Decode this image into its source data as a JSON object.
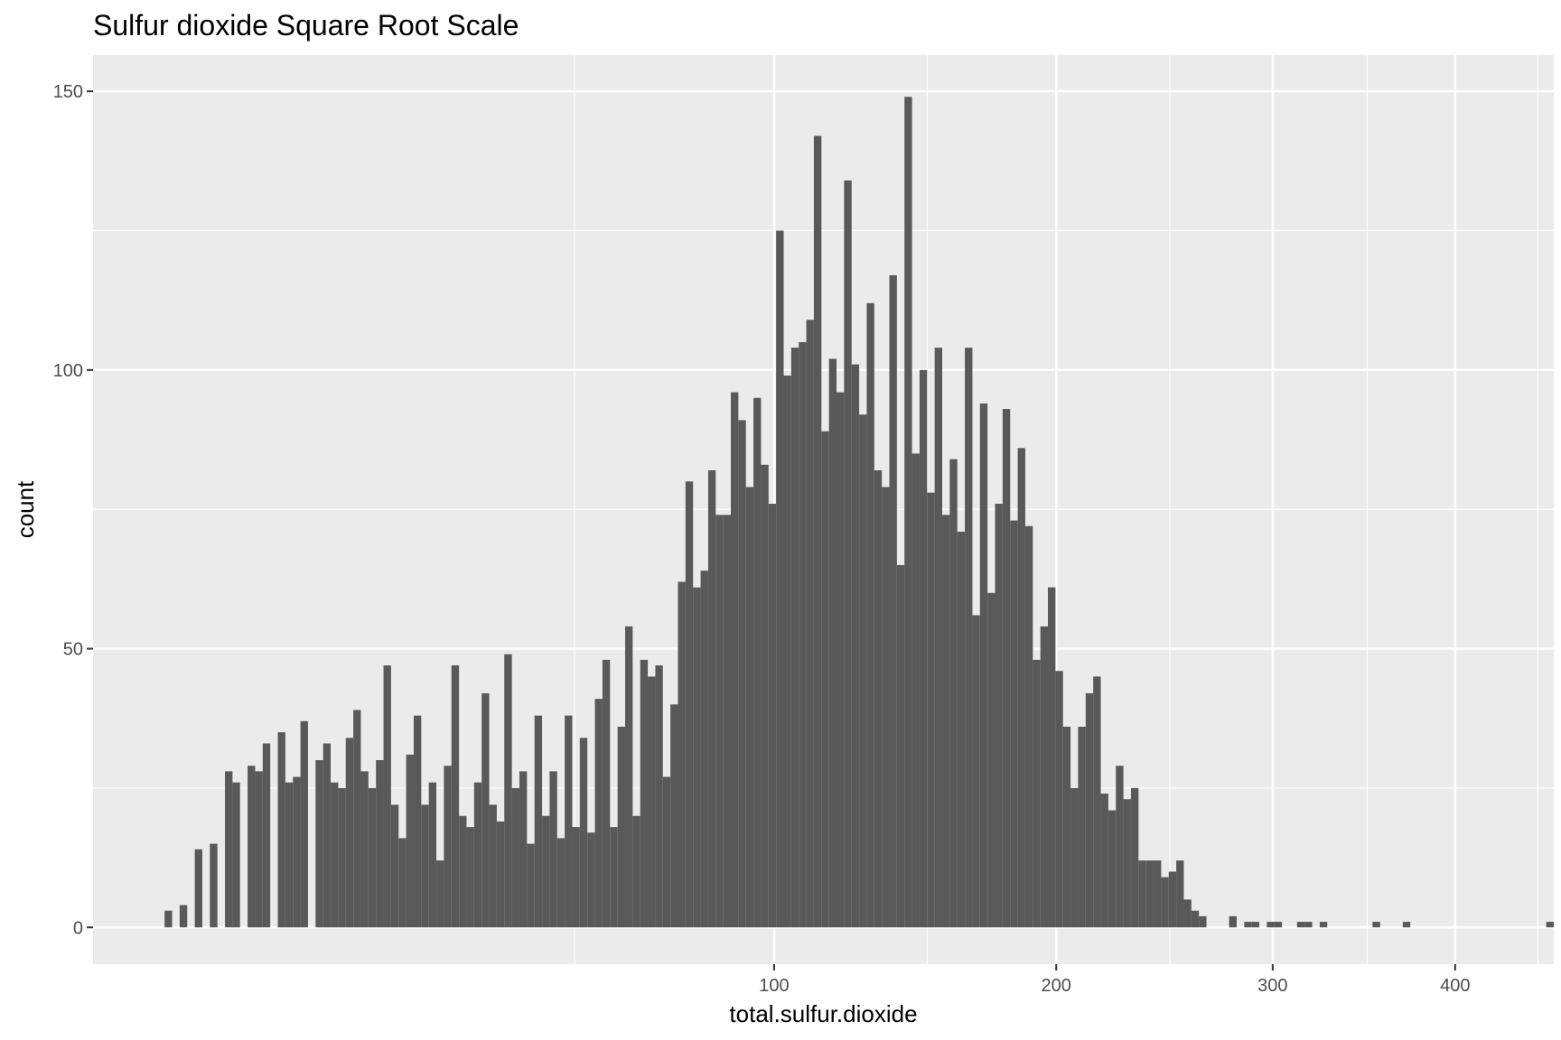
{
  "chart_data": {
    "type": "bar",
    "title": "Sulfur dioxide Square Root Scale",
    "xlabel": "total.sulfur.dioxide",
    "ylabel": "count",
    "x_scale": "sqrt",
    "xlim": [
      0,
      460
    ],
    "ylim": [
      -6.6,
      156.5
    ],
    "x_ticks": [
      100,
      200,
      300,
      400
    ],
    "y_ticks": [
      0,
      50,
      100,
      150
    ],
    "grid": true,
    "bar_color": "#595959",
    "panel_color": "#ebebeb",
    "grid_color": "#ffffff",
    "series": [
      {
        "values": [
          3,
          0,
          4,
          0,
          14,
          0,
          15,
          0,
          28,
          26,
          0,
          29,
          28,
          33,
          0,
          35,
          26,
          27,
          37,
          0,
          30,
          33,
          26,
          25,
          34,
          39,
          28,
          25,
          30,
          47,
          22,
          16,
          31,
          38,
          22,
          26,
          12,
          29,
          47,
          20,
          18,
          26,
          42,
          22,
          19,
          49,
          25,
          28,
          15,
          38,
          20,
          28,
          16,
          38,
          18,
          34,
          17,
          41,
          48,
          18,
          36,
          54,
          20,
          48,
          45,
          47,
          27,
          40,
          62,
          80,
          61,
          64,
          82,
          74,
          74,
          96,
          91,
          79,
          95,
          83,
          76,
          125,
          99,
          104,
          105,
          109,
          142,
          89,
          102,
          96,
          134,
          101,
          92,
          112,
          82,
          79,
          117,
          65,
          149,
          85,
          100,
          78,
          104,
          74,
          84,
          71,
          104,
          56,
          94,
          60,
          76,
          93,
          73,
          86,
          72,
          48,
          54,
          61,
          46,
          36,
          25,
          36,
          42,
          45,
          24,
          21,
          29,
          23,
          25,
          12,
          12,
          12,
          9,
          10,
          12,
          5,
          3,
          2,
          0,
          0,
          0,
          2,
          0,
          1,
          1,
          0,
          1,
          1,
          0,
          0,
          1,
          1,
          0,
          1,
          0,
          0,
          0,
          0,
          0,
          0,
          1,
          0,
          0,
          0,
          1,
          0,
          0,
          0,
          0,
          0,
          0,
          0,
          0,
          0,
          0,
          0,
          0,
          0,
          0,
          0,
          0,
          0,
          0,
          1
        ]
      }
    ]
  }
}
